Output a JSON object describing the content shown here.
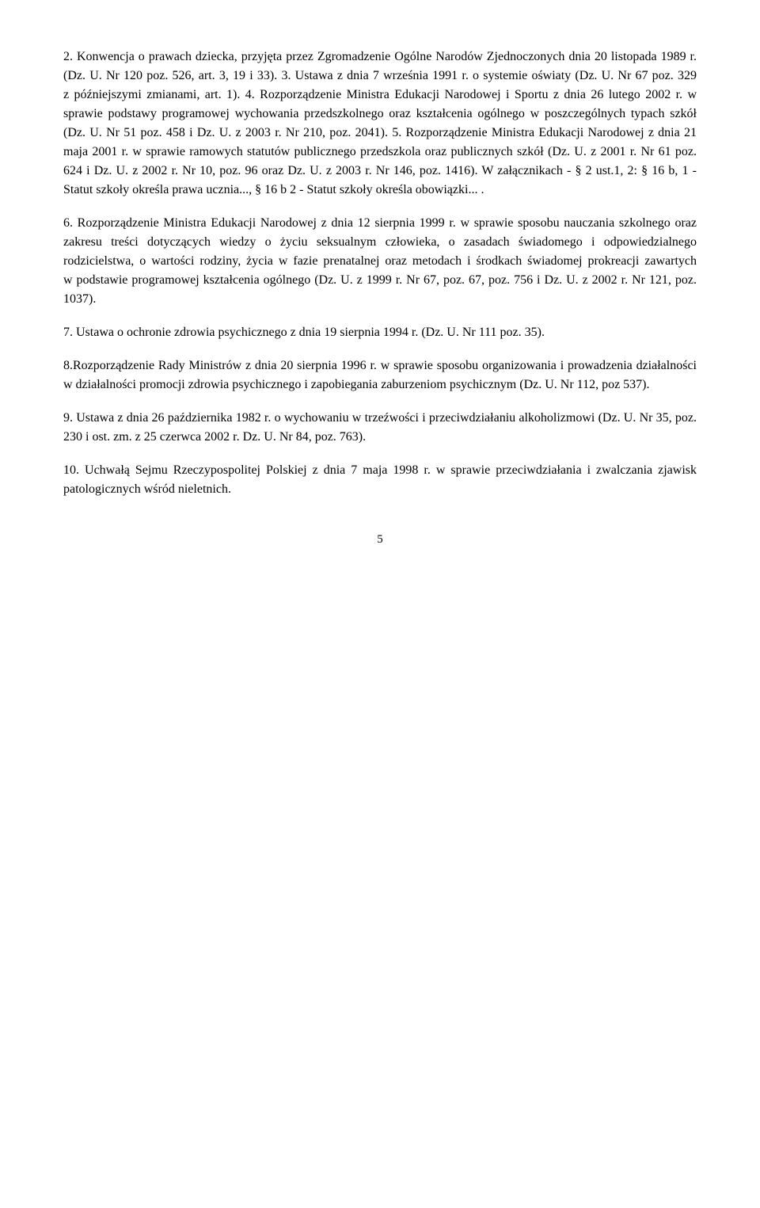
{
  "paragraphs": {
    "p2": "2. Konwencja o prawach dziecka, przyjęta przez Zgromadzenie Ogólne Narodów Zjednoczonych dnia 20 listopada 1989 r. (Dz. U. Nr 120 poz. 526, art. 3, 19 i 33). 3. Ustawa z dnia 7 września 1991 r. o systemie oświaty (Dz. U. Nr 67 poz. 329 z późniejszymi zmianami, art. 1). 4. Rozporządzenie Ministra Edukacji Narodowej i Sportu z dnia 26 lutego 2002 r. w sprawie podstawy programowej wychowania przedszkolnego oraz kształcenia ogólnego w poszczególnych typach szkół (Dz. U. Nr 51 poz. 458 i Dz. U. z 2003 r. Nr 210, poz. 2041). 5. Rozporządzenie Ministra Edukacji Narodowej z dnia 21 maja 2001 r. w sprawie ramowych statutów publicznego przedszkola oraz publicznych szkół (Dz. U. z 2001 r. Nr 61 poz. 624 i Dz. U. z 2002 r. Nr 10, poz. 96 oraz Dz. U. z 2003 r. Nr 146, poz. 1416). W załącznikach - § 2 ust.1, 2: § 16 b, 1 - Statut szkoły określa prawa ucznia..., § 16 b 2 - Statut szkoły określa obowiązki... .",
    "p6": "6. Rozporządzenie Ministra Edukacji Narodowej z dnia 12 sierpnia 1999 r. w sprawie sposobu nauczania szkolnego oraz zakresu treści dotyczących wiedzy o życiu seksualnym człowieka, o zasadach świadomego i odpowiedzialnego rodzicielstwa, o wartości rodziny, życia w fazie prenatalnej oraz metodach i środkach świadomej prokreacji zawartych w podstawie programowej kształcenia ogólnego (Dz. U. z 1999 r. Nr 67, poz. 67, poz. 756 i Dz. U. z 2002 r. Nr 121, poz. 1037).",
    "p7": "7. Ustawa o ochronie zdrowia psychicznego z dnia 19 sierpnia 1994 r. (Dz. U. Nr 111 poz. 35).",
    "p8": "8.Rozporządzenie Rady Ministrów z dnia 20 sierpnia 1996 r. w sprawie sposobu organizowania i prowadzenia działalności w działalności promocji zdrowia psychicznego i zapobiegania zaburzeniom psychicznym (Dz. U. Nr 112, poz 537).",
    "p9": "9. Ustawa z dnia 26 października 1982 r. o wychowaniu w trzeźwości i przeciwdziałaniu alkoholizmowi (Dz. U. Nr 35, poz. 230 i ost. zm. z 25 czerwca 2002 r. Dz. U. Nr 84, poz. 763).",
    "p10": "10. Uchwałą Sejmu Rzeczypospolitej Polskiej z dnia 7 maja 1998 r. w sprawie przeciwdziałania i zwalczania zjawisk patologicznych wśród nieletnich."
  },
  "page_number": "5"
}
